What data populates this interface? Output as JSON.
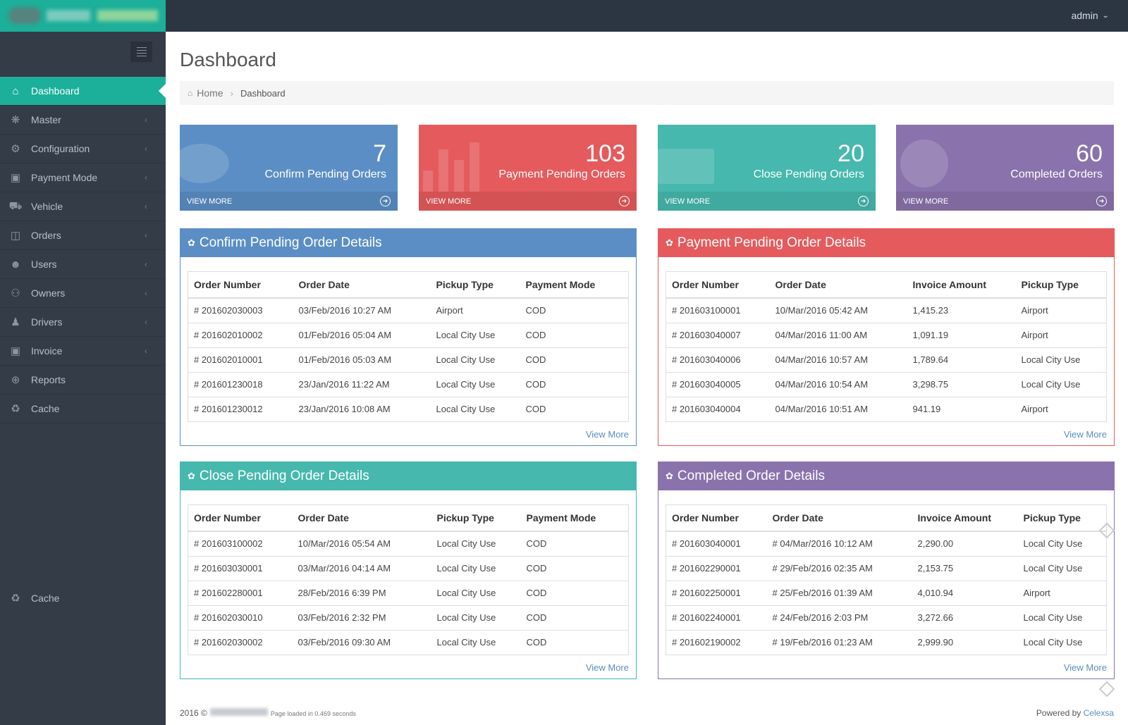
{
  "header": {
    "user": "admin"
  },
  "sidebar": {
    "items": [
      {
        "label": "Dashboard",
        "icon": "home-icon"
      },
      {
        "label": "Master",
        "icon": "asterisk-icon"
      },
      {
        "label": "Configuration",
        "icon": "gear-icon"
      },
      {
        "label": "Payment Mode",
        "icon": "money-icon"
      },
      {
        "label": "Vehicle",
        "icon": "car-icon"
      },
      {
        "label": "Orders",
        "icon": "clipboard-icon"
      },
      {
        "label": "Users",
        "icon": "user-icon"
      },
      {
        "label": "Owners",
        "icon": "users-icon"
      },
      {
        "label": "Drivers",
        "icon": "male-icon"
      },
      {
        "label": "Invoice",
        "icon": "money-icon"
      },
      {
        "label": "Reports",
        "icon": "crosshair-icon"
      },
      {
        "label": "Cache",
        "icon": "recycle-icon"
      }
    ],
    "bottom_item": "Cache"
  },
  "page": {
    "title": "Dashboard",
    "breadcrumb": {
      "home": "Home",
      "current": "Dashboard"
    }
  },
  "stats": [
    {
      "value": "7",
      "label": "Confirm Pending Orders",
      "footer": "VIEW MORE",
      "color": "#5b8ec4"
    },
    {
      "value": "103",
      "label": "Payment Pending Orders",
      "footer": "VIEW MORE",
      "color": "#e55a5c"
    },
    {
      "value": "20",
      "label": "Close Pending Orders",
      "footer": "VIEW MORE",
      "color": "#46b8ae"
    },
    {
      "value": "60",
      "label": "Completed Orders",
      "footer": "VIEW MORE",
      "color": "#8a72ac"
    }
  ],
  "panels": {
    "confirm": {
      "title": "Confirm Pending Order Details",
      "columns": [
        "Order Number",
        "Order Date",
        "Pickup Type",
        "Payment Mode"
      ],
      "rows": [
        [
          "# 201602030003",
          "03/Feb/2016 10:27 AM",
          "Airport",
          "COD"
        ],
        [
          "# 201602010002",
          "01/Feb/2016 05:04 AM",
          "Local City Use",
          "COD"
        ],
        [
          "# 201602010001",
          "01/Feb/2016 05:03 AM",
          "Local City Use",
          "COD"
        ],
        [
          "# 201601230018",
          "23/Jan/2016 11:22 AM",
          "Local City Use",
          "COD"
        ],
        [
          "# 201601230012",
          "23/Jan/2016 10:08 AM",
          "Local City Use",
          "COD"
        ]
      ],
      "view_more": "View More"
    },
    "payment": {
      "title": "Payment Pending Order Details",
      "columns": [
        "Order Number",
        "Order Date",
        "Invoice Amount",
        "Pickup Type"
      ],
      "rows": [
        [
          "# 201603100001",
          "10/Mar/2016 05:42 AM",
          "1,415.23",
          "Airport"
        ],
        [
          "# 201603040007",
          "04/Mar/2016 11:00 AM",
          "1,091.19",
          "Airport"
        ],
        [
          "# 201603040006",
          "04/Mar/2016 10:57 AM",
          "1,789.64",
          "Local City Use"
        ],
        [
          "# 201603040005",
          "04/Mar/2016 10:54 AM",
          "3,298.75",
          "Local City Use"
        ],
        [
          "# 201603040004",
          "04/Mar/2016 10:51 AM",
          "941.19",
          "Airport"
        ]
      ],
      "view_more": "View More"
    },
    "close": {
      "title": "Close Pending Order Details",
      "columns": [
        "Order Number",
        "Order Date",
        "Pickup Type",
        "Payment Mode"
      ],
      "rows": [
        [
          "# 201603100002",
          "10/Mar/2016 05:54 AM",
          "Local City Use",
          "COD"
        ],
        [
          "# 201603030001",
          "03/Mar/2016 04:14 AM",
          "Local City Use",
          "COD"
        ],
        [
          "# 201602280001",
          "28/Feb/2016 6:39 PM",
          "Local City Use",
          "COD"
        ],
        [
          "# 201602030010",
          "03/Feb/2016 2:32 PM",
          "Local City Use",
          "COD"
        ],
        [
          "# 201602030002",
          "03/Feb/2016 09:30 AM",
          "Local City Use",
          "COD"
        ]
      ],
      "view_more": "View More"
    },
    "completed": {
      "title": "Completed Order Details",
      "columns": [
        "Order Number",
        "Order Date",
        "Invoice Amount",
        "Pickup Type"
      ],
      "rows": [
        [
          "# 201603040001",
          "# 04/Mar/2016 10:12 AM",
          "2,290.00",
          "Local City Use"
        ],
        [
          "# 201602290001",
          "# 29/Feb/2016 02:35 AM",
          "2,153.75",
          "Local City Use"
        ],
        [
          "# 201602250001",
          "# 25/Feb/2016 01:39 AM",
          "4,010.94",
          "Airport"
        ],
        [
          "# 201602240001",
          "# 24/Feb/2016 2:03 PM",
          "3,272.66",
          "Local City Use"
        ],
        [
          "# 201602190002",
          "# 19/Feb/2016 01:23 AM",
          "2,999.90",
          "Local City Use"
        ]
      ],
      "view_more": "View More"
    }
  },
  "footer": {
    "year": "2016 ©",
    "loaded": "Page loaded in 0.469 seconds",
    "powered_by": "Powered by",
    "brand": "Celexsa"
  }
}
